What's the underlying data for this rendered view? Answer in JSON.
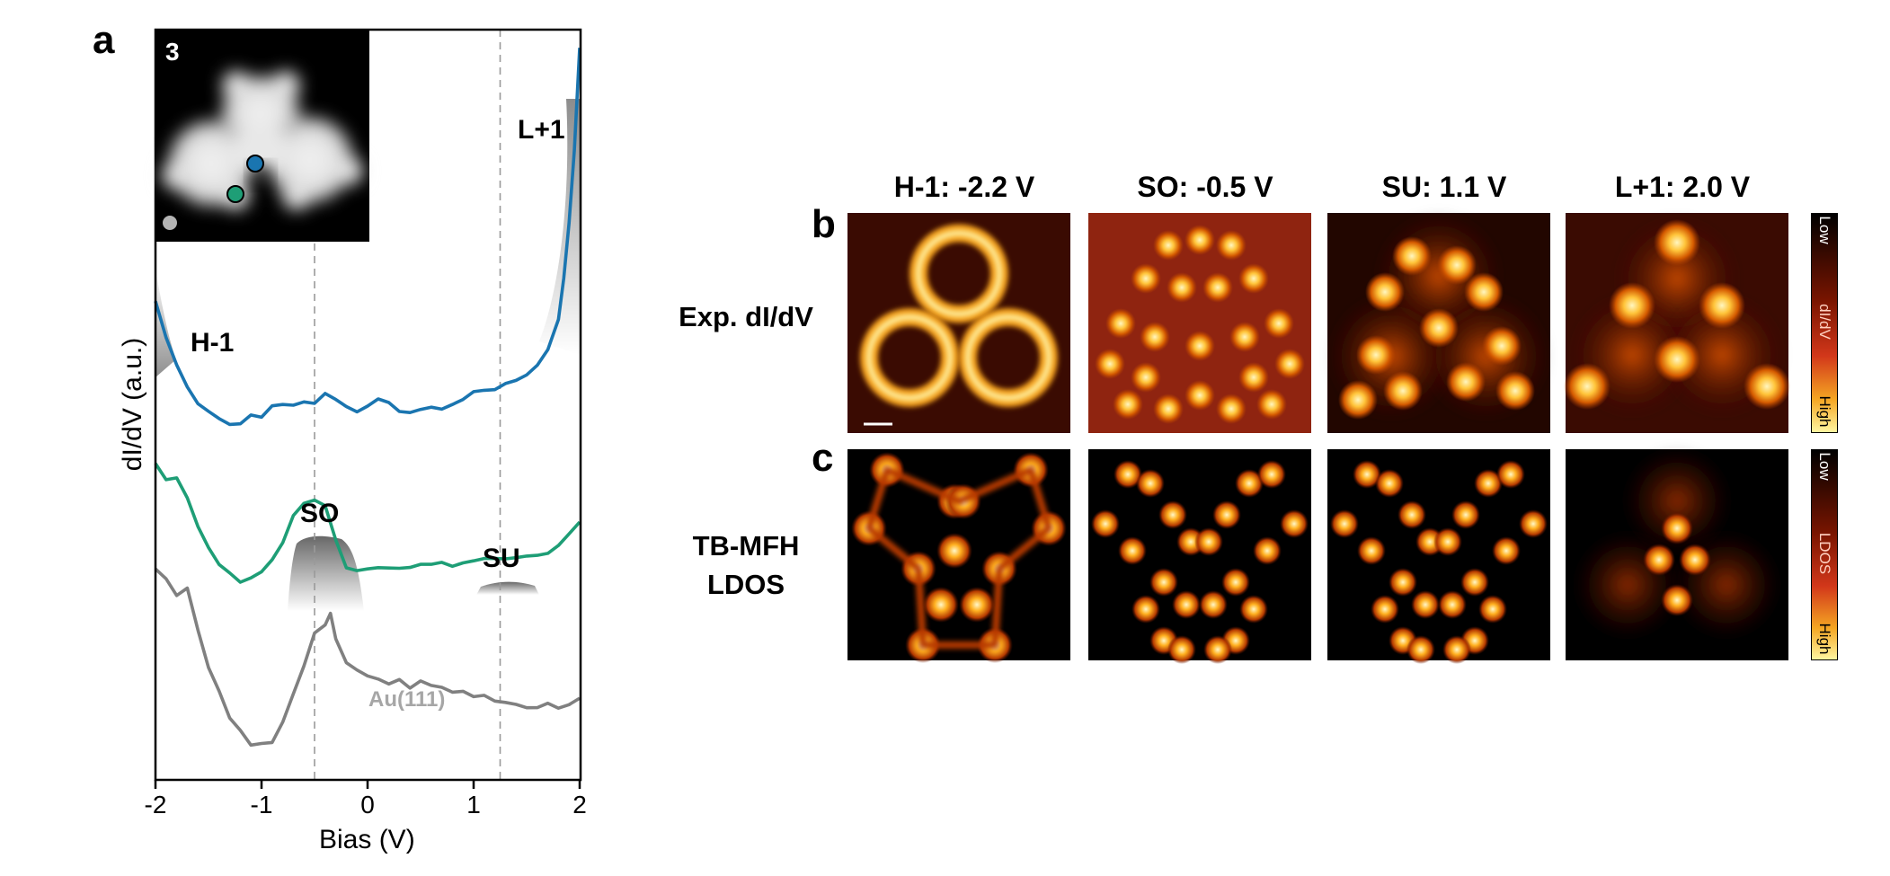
{
  "panels": {
    "a": "a",
    "b": "b",
    "c": "c"
  },
  "panel_a": {
    "inset_label": "3",
    "y_axis_label": "dI/dV (a.u.)",
    "x_axis_label": "Bias (V)",
    "x_ticks": [
      "-2",
      "-1",
      "0",
      "1",
      "2"
    ],
    "annotations": {
      "h1": "H-1",
      "so": "SO",
      "su": "SU",
      "l1": "L+1",
      "au": "Au(111)"
    }
  },
  "chart_data": {
    "type": "line",
    "xlabel": "Bias (V)",
    "ylabel": "dI/dV (a.u.)",
    "xlim": [
      -2,
      2
    ],
    "x_ticks": [
      -2,
      -1,
      0,
      1,
      2
    ],
    "y_ticks_shown": false,
    "reference_lines_x": [
      -0.5,
      1.25
    ],
    "series": [
      {
        "color": "#1a75b0",
        "x": [
          -2.0,
          -1.9,
          -1.8,
          -1.7,
          -1.6,
          -1.5,
          -1.4,
          -1.3,
          -1.2,
          -1.1,
          -1.0,
          -0.9,
          -0.8,
          -0.7,
          -0.6,
          -0.5,
          -0.4,
          -0.3,
          -0.2,
          -0.1,
          0.0,
          0.1,
          0.2,
          0.3,
          0.4,
          0.5,
          0.6,
          0.7,
          0.8,
          0.9,
          1.0,
          1.1,
          1.2,
          1.3,
          1.4,
          1.5,
          1.6,
          1.7,
          1.8,
          1.85,
          1.9,
          1.95,
          2.0
        ],
        "values": [
          7.1,
          6.6,
          6.3,
          6.0,
          5.8,
          5.7,
          5.6,
          5.55,
          5.6,
          5.7,
          5.65,
          5.8,
          5.85,
          5.8,
          5.85,
          5.8,
          5.9,
          5.85,
          5.75,
          5.7,
          5.75,
          5.85,
          5.8,
          5.75,
          5.75,
          5.78,
          5.8,
          5.8,
          5.85,
          5.9,
          5.92,
          5.95,
          5.98,
          6.05,
          6.1,
          6.15,
          6.25,
          6.45,
          6.9,
          7.4,
          8.1,
          9.0,
          10.3
        ]
      },
      {
        "color": "#1e9e76",
        "x": [
          -2.0,
          -1.9,
          -1.8,
          -1.7,
          -1.6,
          -1.5,
          -1.4,
          -1.3,
          -1.2,
          -1.1,
          -1.0,
          -0.9,
          -0.8,
          -0.7,
          -0.6,
          -0.5,
          -0.4,
          -0.3,
          -0.2,
          -0.1,
          0.0,
          0.1,
          0.2,
          0.3,
          0.4,
          0.5,
          0.6,
          0.7,
          0.8,
          0.9,
          1.0,
          1.1,
          1.2,
          1.3,
          1.4,
          1.5,
          1.6,
          1.7,
          1.8,
          1.9,
          2.0
        ],
        "values": [
          5.1,
          4.9,
          4.9,
          4.65,
          4.3,
          4.05,
          3.8,
          3.65,
          3.55,
          3.6,
          3.7,
          3.85,
          4.05,
          4.45,
          4.6,
          4.65,
          4.55,
          4.15,
          3.8,
          3.75,
          3.75,
          3.75,
          3.75,
          3.75,
          3.75,
          3.76,
          3.78,
          3.8,
          3.82,
          3.85,
          3.88,
          3.9,
          3.92,
          3.92,
          3.9,
          3.9,
          3.9,
          3.92,
          4.0,
          4.15,
          4.3
        ]
      },
      {
        "color": "#808080",
        "x": [
          -2.0,
          -1.9,
          -1.8,
          -1.7,
          -1.6,
          -1.5,
          -1.4,
          -1.3,
          -1.2,
          -1.1,
          -1.0,
          -0.9,
          -0.8,
          -0.7,
          -0.6,
          -0.5,
          -0.4,
          -0.35,
          -0.3,
          -0.2,
          -0.1,
          0.0,
          0.1,
          0.2,
          0.3,
          0.4,
          0.5,
          0.6,
          0.7,
          0.8,
          0.9,
          1.0,
          1.1,
          1.2,
          1.3,
          1.4,
          1.5,
          1.6,
          1.7,
          1.8,
          1.9,
          2.0
        ],
        "values": [
          3.75,
          3.6,
          3.4,
          3.55,
          3.0,
          2.55,
          2.25,
          1.9,
          1.75,
          1.55,
          1.6,
          1.55,
          1.8,
          2.15,
          2.5,
          2.9,
          3.0,
          3.15,
          2.9,
          2.6,
          2.5,
          2.45,
          2.4,
          2.35,
          2.4,
          2.3,
          2.3,
          2.25,
          2.25,
          2.2,
          2.2,
          2.15,
          2.15,
          2.1,
          2.1,
          2.1,
          2.05,
          2.05,
          2.08,
          2.05,
          2.05,
          2.1
        ]
      }
    ],
    "inset_markers": [
      {
        "color": "#1a75b0"
      },
      {
        "color": "#1e9e76"
      },
      {
        "color": "#b4b4b4"
      }
    ]
  },
  "panel_bc": {
    "columns": [
      "H-1: -2.2 V",
      "SO: -0.5 V",
      "SU: 1.1 V",
      "L+1: 2.0 V"
    ],
    "row_b_label": "Exp. dI/dV",
    "row_c_label_line1": "TB-MFH",
    "row_c_label_line2": "LDOS",
    "colorbar_b": {
      "low": "Low",
      "mid": "dI/dV",
      "high": "High"
    },
    "colorbar_c": {
      "low": "Low",
      "mid": "LDOS",
      "high": "High"
    }
  }
}
